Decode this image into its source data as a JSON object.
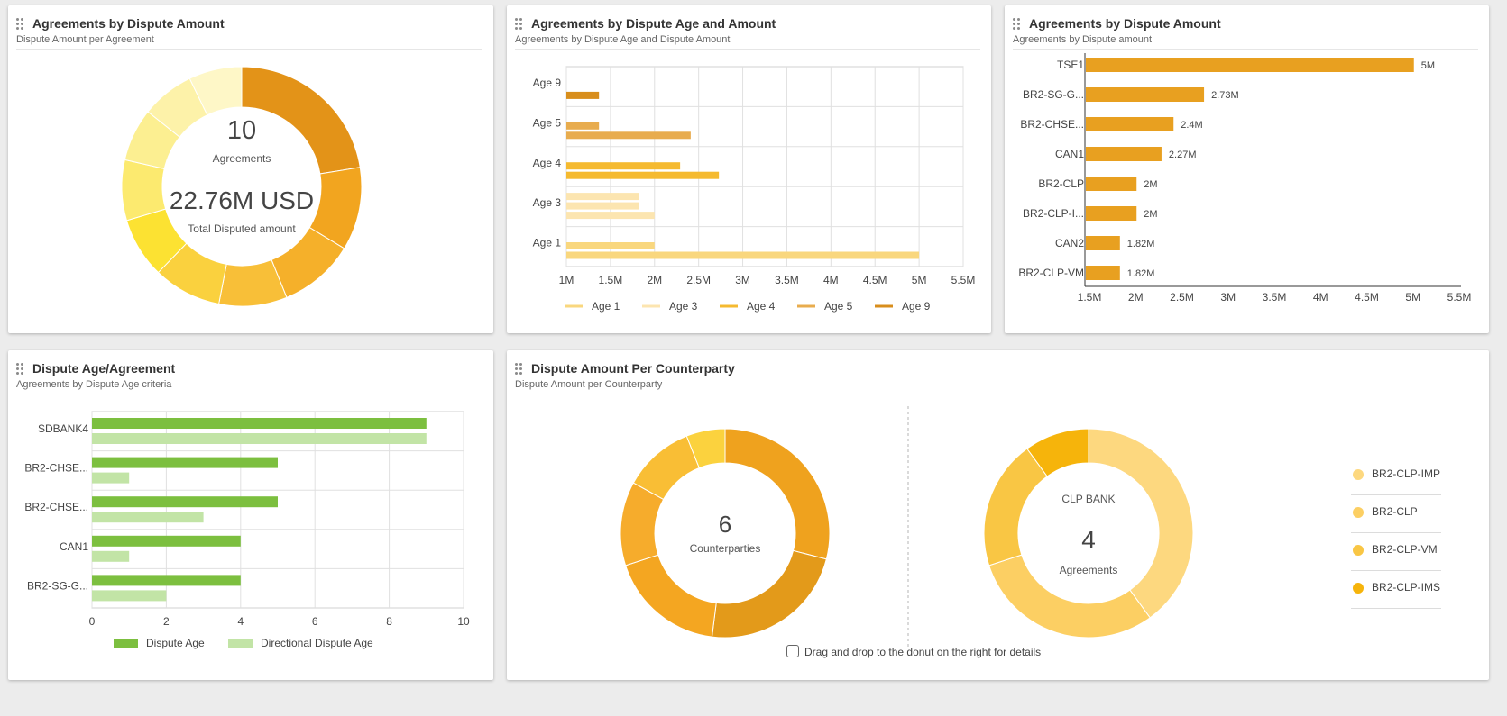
{
  "cards": {
    "card1": {
      "title": "Agreements by Dispute Amount",
      "subtitle": "Dispute Amount per Agreement"
    },
    "card2": {
      "title": "Agreements by Dispute Age and Amount",
      "subtitle": "Agreements by Dispute Age and Dispute Amount"
    },
    "card3": {
      "title": "Agreements by Dispute Amount",
      "subtitle": "Agreements by Dispute amount"
    },
    "card4": {
      "title": "Dispute Age/Agreement",
      "subtitle": "Agreements by Dispute Age criteria"
    },
    "card5": {
      "title": "Dispute Amount Per Counterparty",
      "subtitle": "Dispute Amount per Counterparty"
    }
  },
  "donut1_center": {
    "count": "10",
    "count_label": "Agreements",
    "amount": "22.76M USD",
    "amount_label": "Total Disputed amount"
  },
  "donut2_center": {
    "count": "6",
    "count_label": "Counterparties"
  },
  "donut3_center": {
    "heading": "CLP BANK",
    "count": "4",
    "count_label": "Agreements"
  },
  "drag_hint": "Drag and drop to the donut on the right for details",
  "icons": {
    "drag_handle": "drag-handle-icon",
    "hint": "drag-drop-hint-icon"
  },
  "colors": {
    "accent": "#E8A020",
    "green": "#7CBF3F",
    "light_green": "#C2E4A6"
  },
  "chart_data": [
    {
      "id": "donut-amount",
      "type": "pie",
      "values": [
        22,
        11,
        10,
        9,
        9,
        8,
        8,
        7,
        7,
        7
      ],
      "colors": [
        "#E39318",
        "#F2A51F",
        "#F5B02A",
        "#F8BF38",
        "#FAD13E",
        "#FCE232",
        "#FCEA6F",
        "#FCEF91",
        "#FDF2A9",
        "#FEF7C7"
      ]
    },
    {
      "id": "age-amount",
      "type": "bar",
      "categories": [
        "Age 9",
        "Age 5",
        "Age 4",
        "Age 3",
        "Age 1"
      ],
      "bars": [
        {
          "category": "Age 9",
          "series": "Age 9",
          "value": 1.37
        },
        {
          "category": "Age 5",
          "series": "Age 5",
          "value": 1.37
        },
        {
          "category": "Age 5",
          "series": "Age 5",
          "value": 2.41
        },
        {
          "category": "Age 4",
          "series": "Age 4",
          "value": 2.29
        },
        {
          "category": "Age 4",
          "series": "Age 4",
          "value": 2.73
        },
        {
          "category": "Age 3",
          "series": "Age 3",
          "value": 1.82
        },
        {
          "category": "Age 3",
          "series": "Age 3",
          "value": 1.82
        },
        {
          "category": "Age 3",
          "series": "Age 3",
          "value": 2.0
        },
        {
          "category": "Age 1",
          "series": "Age 1",
          "value": 2.0
        },
        {
          "category": "Age 1",
          "series": "Age 1",
          "value": 5.0
        }
      ],
      "series": [
        {
          "name": "Age 1",
          "color": "#F9D77E"
        },
        {
          "name": "Age 3",
          "color": "#FCE5B0"
        },
        {
          "name": "Age 4",
          "color": "#F5BA30"
        },
        {
          "name": "Age 5",
          "color": "#E8AC4E"
        },
        {
          "name": "Age 9",
          "color": "#D88E1C"
        }
      ],
      "xticks": [
        "1M",
        "1.5M",
        "2M",
        "2.5M",
        "3M",
        "3.5M",
        "4M",
        "4.5M",
        "5M",
        "5.5M"
      ],
      "xlim": [
        1,
        5.5
      ],
      "grid": true,
      "legend_position": "bottom"
    },
    {
      "id": "amount-by-agreement",
      "type": "bar",
      "categories": [
        "TSE1",
        "BR2-SG-G...",
        "BR2-CHSE...",
        "CAN1",
        "BR2-CLP",
        "BR2-CLP-I...",
        "CAN2",
        "BR2-CLP-VM"
      ],
      "values": [
        5.0,
        2.73,
        2.4,
        2.27,
        2.0,
        2.0,
        1.82,
        1.82
      ],
      "labels": [
        "5M",
        "2.73M",
        "2.4M",
        "2.27M",
        "2M",
        "2M",
        "1.82M",
        "1.82M"
      ],
      "xticks": [
        "1.5M",
        "2M",
        "2.5M",
        "3M",
        "3.5M",
        "4M",
        "4.5M",
        "5M",
        "5.5M"
      ],
      "xlim": [
        1.5,
        5.5
      ],
      "color": "#E8A020",
      "grid": false
    },
    {
      "id": "dispute-age",
      "type": "bar",
      "categories": [
        "SDBANK4",
        "BR2-CHSE...",
        "BR2-CHSE...",
        "CAN1",
        "BR2-SG-G..."
      ],
      "series": [
        {
          "name": "Dispute Age",
          "values": [
            9,
            5,
            5,
            4,
            4
          ],
          "color": "#7CBF3F"
        },
        {
          "name": "Directional Dispute Age",
          "values": [
            9,
            1,
            3,
            1,
            2
          ],
          "color": "#C2E4A6"
        }
      ],
      "xticks": [
        "0",
        "2",
        "4",
        "6",
        "8",
        "10"
      ],
      "xlim": [
        0,
        10
      ],
      "grid": true,
      "legend_position": "bottom"
    },
    {
      "id": "donut-counterparties",
      "type": "pie",
      "values": [
        29,
        23,
        18,
        13,
        11,
        6
      ],
      "colors": [
        "#EFA21E",
        "#E39A1A",
        "#F4A621",
        "#F6AC2C",
        "#F9BE35",
        "#FBD23E"
      ]
    },
    {
      "id": "donut-clp-bank",
      "type": "pie",
      "values": [
        40,
        30,
        20,
        10
      ],
      "labels": [
        "BR2-CLP-IMP",
        "BR2-CLP",
        "BR2-CLP-VM",
        "BR2-CLP-IMS"
      ],
      "colors": [
        "#FDD87F",
        "#FCCF63",
        "#F9C644",
        "#F6B40B"
      ],
      "legend_position": "right"
    }
  ]
}
